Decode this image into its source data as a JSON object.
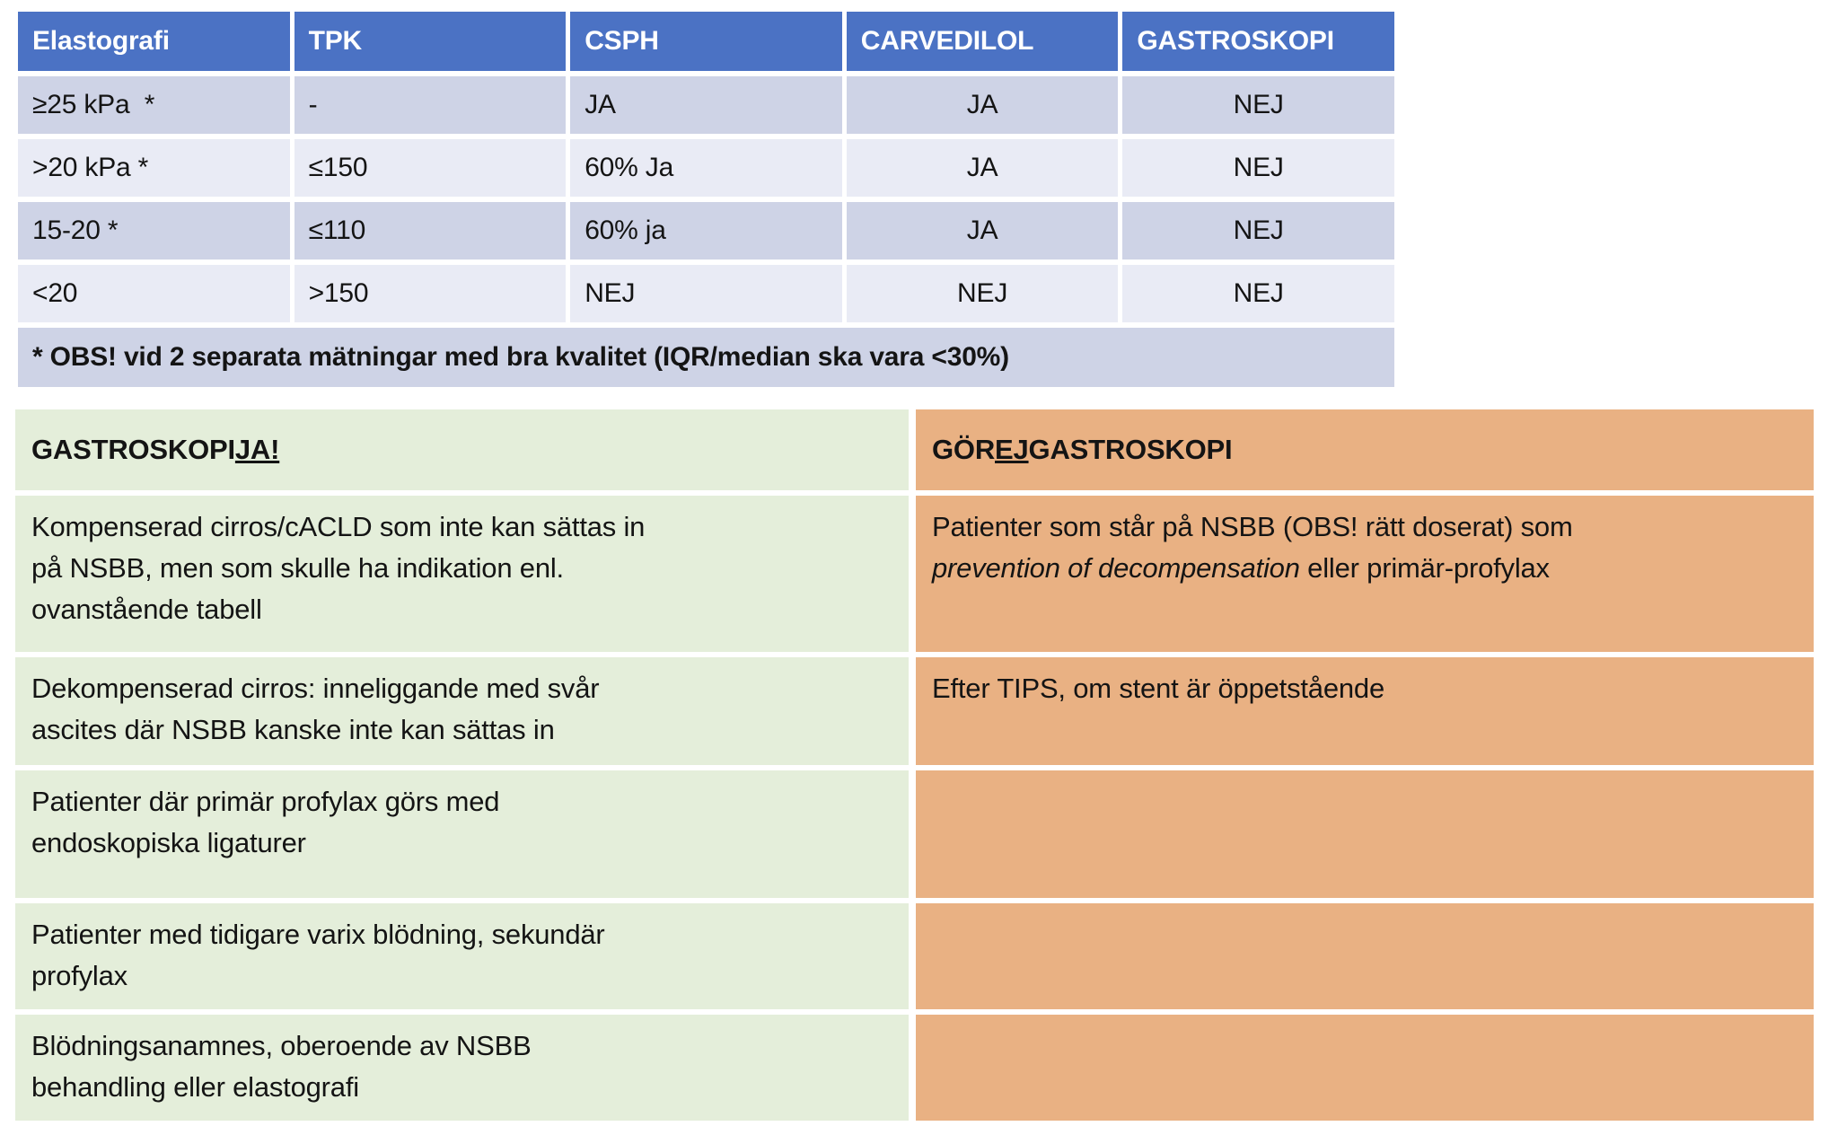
{
  "colors": {
    "header_blue": "#4B72C4",
    "row_dark_lavender": "#CED3E6",
    "row_light_lavender": "#E9EBF5",
    "green_panel": "#E4EEDA",
    "orange_panel": "#E9B183",
    "header_text": "#ffffff",
    "body_text": "#141414"
  },
  "top_table": {
    "headers": [
      "Elastografi",
      "TPK",
      "CSPH",
      "CARVEDILOL",
      "GASTROSKOPI"
    ],
    "rows": [
      {
        "cells": [
          "≥25 kPa  *",
          "-",
          "JA",
          "JA",
          "NEJ"
        ]
      },
      {
        "cells": [
          ">20 kPa *",
          "≤150",
          "60% Ja",
          "JA",
          "NEJ"
        ]
      },
      {
        "cells": [
          "15-20 *",
          "≤110",
          "60% ja",
          "JA",
          "NEJ"
        ]
      },
      {
        "cells": [
          "<20",
          ">150",
          "NEJ",
          "NEJ",
          "NEJ"
        ]
      }
    ],
    "footnote": "* OBS! vid 2 separata mätningar med bra kvalitet (IQR/median ska vara <30%)"
  },
  "bottom_table": {
    "left": {
      "header_segments": [
        {
          "text": "GASTROSKOPI ",
          "style": "normal"
        },
        {
          "text": "JA!",
          "style": "underline"
        }
      ],
      "rows": [
        "Kompenserad cirros/cACLD som inte kan sättas in\npå NSBB, men som skulle ha indikation enl.\novanstående tabell",
        "Dekompenserad cirros: inneliggande med svår\nascites där NSBB kanske inte kan sättas in",
        "Patienter där primär profylax görs med\nendoskopiska ligaturer",
        "Patienter med tidigare varix blödning, sekundär\nprofylax",
        "Blödningsanamnes, oberoende av NSBB\nbehandling eller elastografi"
      ]
    },
    "right": {
      "header_segments": [
        {
          "text": "GÖR ",
          "style": "normal"
        },
        {
          "text": "EJ",
          "style": "underline"
        },
        {
          "text": " GASTROSKOPI",
          "style": "normal"
        }
      ],
      "rows_segments": [
        [
          {
            "text": "Patienter som står på NSBB (OBS! rätt doserat) som\n",
            "style": "normal"
          },
          {
            "text": "prevention of decompensation",
            "style": "italic"
          },
          {
            "text": " eller primär-profylax",
            "style": "normal"
          }
        ],
        [
          {
            "text": "Efter TIPS, om stent är öppetstående",
            "style": "normal"
          }
        ],
        [],
        [],
        []
      ]
    }
  }
}
